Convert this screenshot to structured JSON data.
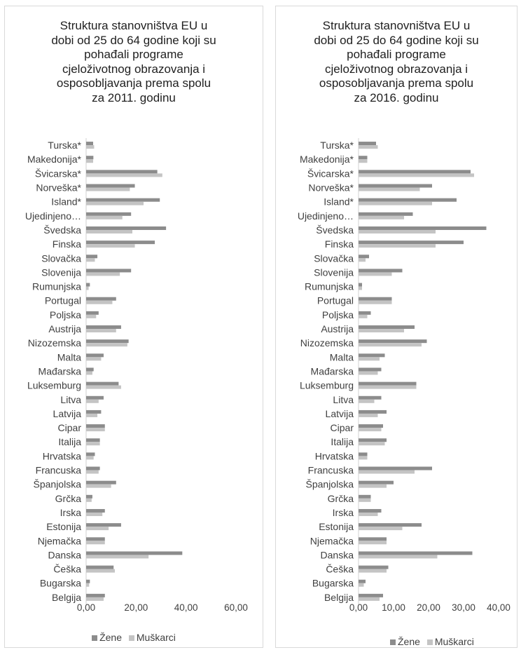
{
  "colors": {
    "zene": "#8c8c8c",
    "muskarci": "#c4c4c4"
  },
  "legend": {
    "zene": "Žene",
    "muskarci": "Muškarci"
  },
  "chart_data": [
    {
      "type": "bar",
      "orientation": "horizontal",
      "title": [
        "Struktura stanovništva EU u",
        "dobi od 25 do 64 godine koji su",
        "pohađali programe",
        "cjeloživotnog obrazovanja i",
        "osposobljavanja prema spolu",
        "za 2011. godinu"
      ],
      "categories": [
        "Turska*",
        "Makedonija*",
        "Švicarska*",
        "Norveška*",
        "Island*",
        "Ujedinjeno…",
        "Švedska",
        "Finska",
        "Slovačka",
        "Slovenija",
        "Rumunjska",
        "Portugal",
        "Poljska",
        "Austrija",
        "Nizozemska",
        "Malta",
        "Mađarska",
        "Luksemburg",
        "Litva",
        "Latvija",
        "Cipar",
        "Italija",
        "Hrvatska",
        "Francuska",
        "Španjolska",
        "Grčka",
        "Irska",
        "Estonija",
        "Njemačka",
        "Danska",
        "Češka",
        "Bugarska",
        "Belgija"
      ],
      "series": [
        {
          "name": "Žene",
          "values": [
            2.8,
            2.9,
            28.5,
            19.5,
            29.5,
            18.0,
            32.0,
            27.5,
            4.5,
            18.0,
            1.5,
            12.0,
            5.0,
            14.0,
            17.0,
            7.0,
            3.0,
            13.0,
            7.0,
            6.0,
            7.5,
            5.5,
            3.5,
            5.5,
            12.0,
            2.5,
            7.5,
            14.0,
            7.5,
            38.5,
            11.0,
            1.5,
            7.5
          ]
        },
        {
          "name": "Muškarci",
          "values": [
            3.2,
            2.8,
            30.5,
            17.5,
            23.0,
            14.5,
            18.5,
            19.5,
            3.5,
            13.5,
            1.0,
            10.5,
            4.0,
            12.0,
            16.5,
            6.0,
            2.5,
            14.0,
            5.0,
            4.5,
            7.5,
            5.5,
            3.0,
            5.0,
            10.0,
            2.2,
            6.5,
            9.0,
            7.5,
            25.0,
            11.5,
            1.2,
            7.0
          ]
        }
      ],
      "xlim": [
        0,
        60
      ],
      "xticks": [
        "0,00",
        "20,00",
        "40,00",
        "60,00"
      ],
      "xtick_values": [
        0,
        20,
        40,
        60
      ],
      "grid": false,
      "legend_position": "bottom"
    },
    {
      "type": "bar",
      "orientation": "horizontal",
      "title": [
        "Struktura stanovništva EU u",
        "dobi od 25 do 64 godine koji su",
        "pohađali programe",
        "cjeloživotnog obrazovanja i",
        "osposobljavanja prema spolu",
        "za 2016. godinu"
      ],
      "categories": [
        "Turska*",
        "Makedonija*",
        "Švicarska*",
        "Norveška*",
        "Island*",
        "Ujedinjeno…",
        "Švedska",
        "Finska",
        "Slovačka",
        "Slovenija",
        "Rumunjska",
        "Portugal",
        "Poljska",
        "Austrija",
        "Nizozemska",
        "Malta",
        "Mađarska",
        "Luksemburg",
        "Litva",
        "Latvija",
        "Cipar",
        "Italija",
        "Hrvatska",
        "Francuska",
        "Španjolska",
        "Grčka",
        "Irska",
        "Estonija",
        "Njemačka",
        "Danska",
        "Češka",
        "Bugarska",
        "Belgija"
      ],
      "series": [
        {
          "name": "Žene",
          "values": [
            5.0,
            2.5,
            32.0,
            21.0,
            28.0,
            15.5,
            36.5,
            30.0,
            3.0,
            12.5,
            1.0,
            9.5,
            3.5,
            16.0,
            19.5,
            7.5,
            6.5,
            16.5,
            6.5,
            8.0,
            7.0,
            8.0,
            2.5,
            21.0,
            10.0,
            3.5,
            6.5,
            18.0,
            8.0,
            32.5,
            8.5,
            2.0,
            7.0
          ]
        },
        {
          "name": "Muškarci",
          "values": [
            5.5,
            2.5,
            33.0,
            17.5,
            21.0,
            13.0,
            22.0,
            22.0,
            2.0,
            9.5,
            1.0,
            9.5,
            2.5,
            13.0,
            18.0,
            6.0,
            5.5,
            16.5,
            4.5,
            5.5,
            6.5,
            7.5,
            2.5,
            16.0,
            8.0,
            3.5,
            5.5,
            12.5,
            8.0,
            22.5,
            8.0,
            1.5,
            6.0
          ]
        }
      ],
      "xlim": [
        0,
        40
      ],
      "xticks": [
        "0,00",
        "10,00",
        "20,00",
        "30,00",
        "40,00"
      ],
      "xtick_values": [
        0,
        10,
        20,
        30,
        40
      ],
      "grid": false,
      "legend_position": "bottom"
    }
  ]
}
